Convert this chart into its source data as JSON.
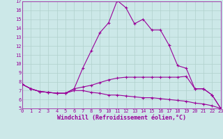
{
  "xlabel": "Windchill (Refroidissement éolien,°C)",
  "background_color": "#cce8e8",
  "grid_color": "#b0d0cc",
  "line_color": "#990099",
  "ylim": [
    5,
    17
  ],
  "xlim": [
    0,
    23
  ],
  "yticks": [
    5,
    6,
    7,
    8,
    9,
    10,
    11,
    12,
    13,
    14,
    15,
    16,
    17
  ],
  "xticks": [
    0,
    1,
    2,
    3,
    4,
    5,
    6,
    7,
    8,
    9,
    10,
    11,
    12,
    13,
    14,
    15,
    16,
    17,
    18,
    19,
    20,
    21,
    22,
    23
  ],
  "curve1_x": [
    0,
    1,
    2,
    3,
    4,
    5,
    6,
    7,
    8,
    9,
    10,
    11,
    12,
    13,
    14,
    15,
    16,
    17,
    18,
    19,
    20,
    21,
    22,
    23
  ],
  "curve1_y": [
    7.7,
    7.2,
    6.9,
    6.8,
    6.7,
    6.7,
    7.2,
    9.5,
    11.5,
    13.5,
    14.6,
    17.1,
    16.3,
    14.5,
    15.0,
    13.8,
    13.8,
    12.1,
    9.8,
    9.5,
    7.2,
    7.2,
    6.5,
    5.0
  ],
  "curve2_x": [
    0,
    1,
    2,
    3,
    4,
    5,
    6,
    7,
    8,
    9,
    10,
    11,
    12,
    13,
    14,
    15,
    16,
    17,
    18,
    19,
    20,
    21,
    22,
    23
  ],
  "curve2_y": [
    7.7,
    7.2,
    6.9,
    6.8,
    6.7,
    6.7,
    7.2,
    7.4,
    7.6,
    7.9,
    8.2,
    8.4,
    8.5,
    8.5,
    8.5,
    8.5,
    8.5,
    8.5,
    8.5,
    8.6,
    7.2,
    7.2,
    6.5,
    5.0
  ],
  "curve3_x": [
    0,
    1,
    2,
    3,
    4,
    5,
    6,
    7,
    8,
    9,
    10,
    11,
    12,
    13,
    14,
    15,
    16,
    17,
    18,
    19,
    20,
    21,
    22,
    23
  ],
  "curve3_y": [
    7.7,
    7.2,
    6.9,
    6.8,
    6.7,
    6.7,
    7.0,
    7.0,
    6.8,
    6.7,
    6.5,
    6.5,
    6.4,
    6.3,
    6.2,
    6.2,
    6.1,
    6.0,
    5.9,
    5.8,
    5.6,
    5.5,
    5.3,
    5.0
  ],
  "tick_fontsize": 5.0,
  "xlabel_fontsize": 6.0,
  "linewidth": 0.8,
  "markersize": 3.0
}
